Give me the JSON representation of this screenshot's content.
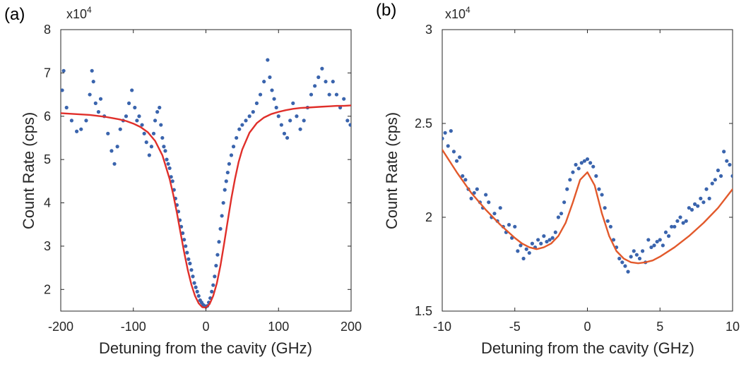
{
  "chart_data": [
    {
      "type": "scatter",
      "panel_label": "(a)",
      "xlabel": "Detuning from the cavity (GHz)",
      "ylabel": "Count Rate (cps)",
      "y_multiplier_base": "x10",
      "y_multiplier_exp": "4",
      "xlim": [
        -200,
        200
      ],
      "ylim": [
        1.5,
        8
      ],
      "xticks": [
        -200,
        -100,
        0,
        100,
        200
      ],
      "xtick_labels": [
        "-200",
        "-100",
        "0",
        "100",
        "200"
      ],
      "yticks": [
        2,
        3,
        4,
        5,
        6,
        7,
        8
      ],
      "ytick_labels": [
        "2",
        "3",
        "4",
        "5",
        "6",
        "7",
        "8"
      ],
      "grid": false,
      "marker_color": "#3a64ad",
      "fit_color": "#e02f2a",
      "series": [
        {
          "kind": "points",
          "x": [
            -198,
            -196,
            -192,
            -185,
            -178,
            -172,
            -165,
            -160,
            -157,
            -155,
            -152,
            -148,
            -145,
            -140,
            -135,
            -130,
            -126,
            -122,
            -118,
            -114,
            -110,
            -106,
            -102,
            -98,
            -95,
            -92,
            -88,
            -85,
            -82,
            -78,
            -75,
            -72,
            -70,
            -67,
            -64,
            -62,
            -60,
            -58,
            -56,
            -54,
            -52,
            -50,
            -48,
            -46,
            -44,
            -42,
            -40,
            -38,
            -36,
            -34,
            -32,
            -30,
            -28,
            -26,
            -24,
            -22,
            -20,
            -18,
            -16,
            -14,
            -12,
            -10,
            -8,
            -6,
            -4,
            -2,
            0,
            2,
            4,
            6,
            8,
            10,
            12,
            14,
            16,
            18,
            20,
            22,
            24,
            26,
            28,
            30,
            32,
            35,
            38,
            42,
            46,
            50,
            55,
            60,
            65,
            70,
            75,
            80,
            85,
            88,
            91,
            94,
            97,
            100,
            104,
            108,
            112,
            116,
            120,
            125,
            130,
            135,
            140,
            145,
            150,
            155,
            160,
            165,
            170,
            175,
            180,
            185,
            190,
            195,
            199
          ],
          "y": [
            6.6,
            7.05,
            6.2,
            5.9,
            5.65,
            5.7,
            5.9,
            6.5,
            7.05,
            6.8,
            6.3,
            6.1,
            6.4,
            6.0,
            5.6,
            5.2,
            4.9,
            5.3,
            5.7,
            5.9,
            6.0,
            6.3,
            6.6,
            6.2,
            5.9,
            6.0,
            5.8,
            5.6,
            5.4,
            5.1,
            5.3,
            5.6,
            5.9,
            6.1,
            6.2,
            5.8,
            5.5,
            5.3,
            5.2,
            5.0,
            4.9,
            4.8,
            4.6,
            4.5,
            4.3,
            4.1,
            3.95,
            3.8,
            3.6,
            3.45,
            3.3,
            3.15,
            3.0,
            2.85,
            2.7,
            2.6,
            2.45,
            2.3,
            2.15,
            2.05,
            1.95,
            1.85,
            1.75,
            1.7,
            1.65,
            1.62,
            1.6,
            1.62,
            1.7,
            1.8,
            1.95,
            2.1,
            2.3,
            2.55,
            2.8,
            3.1,
            3.4,
            3.7,
            4.0,
            4.3,
            4.5,
            4.7,
            4.9,
            5.1,
            5.3,
            5.5,
            5.7,
            5.8,
            5.9,
            6.0,
            6.1,
            6.3,
            6.5,
            6.8,
            7.3,
            6.9,
            6.6,
            6.4,
            6.2,
            6.0,
            5.8,
            5.6,
            5.5,
            5.9,
            6.3,
            6.0,
            5.7,
            5.9,
            6.2,
            6.5,
            6.7,
            6.9,
            7.1,
            6.8,
            6.5,
            6.8,
            6.5,
            6.2,
            6.4,
            5.9,
            5.8
          ]
        },
        {
          "kind": "line",
          "x": [
            -200,
            -190,
            -180,
            -170,
            -160,
            -150,
            -140,
            -130,
            -120,
            -110,
            -100,
            -90,
            -80,
            -70,
            -60,
            -50,
            -45,
            -40,
            -35,
            -30,
            -25,
            -20,
            -15,
            -10,
            -5,
            0,
            5,
            10,
            15,
            20,
            25,
            30,
            35,
            40,
            45,
            50,
            60,
            70,
            80,
            90,
            100,
            110,
            120,
            130,
            140,
            150,
            160,
            170,
            180,
            190,
            200
          ],
          "y": [
            6.07,
            6.06,
            6.05,
            6.04,
            6.03,
            6.01,
            5.99,
            5.96,
            5.93,
            5.89,
            5.83,
            5.75,
            5.63,
            5.43,
            5.1,
            4.55,
            4.19,
            3.77,
            3.31,
            2.86,
            2.45,
            2.11,
            1.85,
            1.68,
            1.59,
            1.58,
            1.66,
            1.85,
            2.14,
            2.55,
            3.05,
            3.58,
            4.1,
            4.55,
            4.94,
            5.23,
            5.62,
            5.84,
            5.97,
            6.05,
            6.1,
            6.14,
            6.17,
            6.19,
            6.2,
            6.21,
            6.22,
            6.23,
            6.24,
            6.24,
            6.25
          ]
        }
      ]
    },
    {
      "type": "scatter",
      "panel_label": "(b)",
      "xlabel": "Detuning from the cavity (GHz)",
      "ylabel": "Count Rate (cps)",
      "y_multiplier_base": "x10",
      "y_multiplier_exp": "4",
      "xlim": [
        -10,
        10
      ],
      "ylim": [
        1.5,
        3
      ],
      "xticks": [
        -10,
        -5,
        0,
        5,
        10
      ],
      "xtick_labels": [
        "-10",
        "-5",
        "0",
        "5",
        "10"
      ],
      "yticks": [
        1.5,
        2,
        2.5,
        3
      ],
      "ytick_labels": [
        "1.5",
        "2",
        "2.5",
        "3"
      ],
      "grid": false,
      "marker_color": "#3a64ad",
      "fit_color": "#e2592b",
      "series": [
        {
          "kind": "points",
          "x": [
            -10.0,
            -9.8,
            -9.6,
            -9.4,
            -9.2,
            -9.0,
            -8.8,
            -8.6,
            -8.4,
            -8.2,
            -8.0,
            -7.8,
            -7.6,
            -7.4,
            -7.2,
            -7.0,
            -6.8,
            -6.6,
            -6.4,
            -6.2,
            -6.0,
            -5.8,
            -5.6,
            -5.4,
            -5.2,
            -5.0,
            -4.8,
            -4.6,
            -4.4,
            -4.2,
            -4.0,
            -3.8,
            -3.6,
            -3.4,
            -3.2,
            -3.0,
            -2.8,
            -2.6,
            -2.4,
            -2.2,
            -2.0,
            -1.8,
            -1.6,
            -1.4,
            -1.2,
            -1.0,
            -0.8,
            -0.6,
            -0.4,
            -0.2,
            0.0,
            0.2,
            0.4,
            0.6,
            0.8,
            1.0,
            1.2,
            1.4,
            1.6,
            1.8,
            2.0,
            2.2,
            2.4,
            2.6,
            2.8,
            3.0,
            3.2,
            3.4,
            3.6,
            3.8,
            4.0,
            4.2,
            4.4,
            4.6,
            4.8,
            5.0,
            5.2,
            5.4,
            5.6,
            5.8,
            6.0,
            6.2,
            6.4,
            6.6,
            6.8,
            7.0,
            7.2,
            7.4,
            7.6,
            7.8,
            8.0,
            8.2,
            8.4,
            8.6,
            8.8,
            9.0,
            9.2,
            9.4,
            9.6,
            9.8,
            10.0
          ],
          "y": [
            2.42,
            2.45,
            2.38,
            2.46,
            2.35,
            2.3,
            2.32,
            2.22,
            2.2,
            2.15,
            2.1,
            2.13,
            2.15,
            2.08,
            2.05,
            2.12,
            2.08,
            2.0,
            2.02,
            1.98,
            2.05,
            1.95,
            1.92,
            1.96,
            1.89,
            1.95,
            1.82,
            1.85,
            1.78,
            1.83,
            1.81,
            1.86,
            1.84,
            1.88,
            1.86,
            1.9,
            1.87,
            1.88,
            1.89,
            1.92,
            2.0,
            2.02,
            2.08,
            2.15,
            2.2,
            2.24,
            2.28,
            2.26,
            2.29,
            2.3,
            2.31,
            2.29,
            2.27,
            2.22,
            2.15,
            2.12,
            2.05,
            1.98,
            1.95,
            1.88,
            1.84,
            1.78,
            1.76,
            1.74,
            1.71,
            1.79,
            1.82,
            1.8,
            1.78,
            1.82,
            1.76,
            1.88,
            1.84,
            1.85,
            1.87,
            1.88,
            1.85,
            1.92,
            1.9,
            1.95,
            1.95,
            1.98,
            2.0,
            1.97,
            1.98,
            2.05,
            2.04,
            2.07,
            2.06,
            2.1,
            2.08,
            2.15,
            2.1,
            2.18,
            2.2,
            2.25,
            2.22,
            2.35,
            2.3,
            2.28,
            2.22
          ]
        },
        {
          "kind": "line",
          "x": [
            -10,
            -9,
            -8,
            -7,
            -6,
            -5,
            -4.5,
            -4,
            -3.5,
            -3,
            -2.5,
            -2,
            -1.5,
            -1,
            -0.5,
            0,
            0.5,
            1,
            1.5,
            2,
            2.5,
            3,
            3.5,
            4,
            4.5,
            5,
            6,
            7,
            8,
            9,
            10
          ],
          "y": [
            2.36,
            2.24,
            2.13,
            2.04,
            1.96,
            1.89,
            1.86,
            1.84,
            1.83,
            1.84,
            1.86,
            1.9,
            1.97,
            2.08,
            2.2,
            2.24,
            2.17,
            2.02,
            1.9,
            1.82,
            1.78,
            1.76,
            1.755,
            1.76,
            1.77,
            1.79,
            1.84,
            1.9,
            1.97,
            2.05,
            2.15
          ]
        }
      ]
    }
  ]
}
